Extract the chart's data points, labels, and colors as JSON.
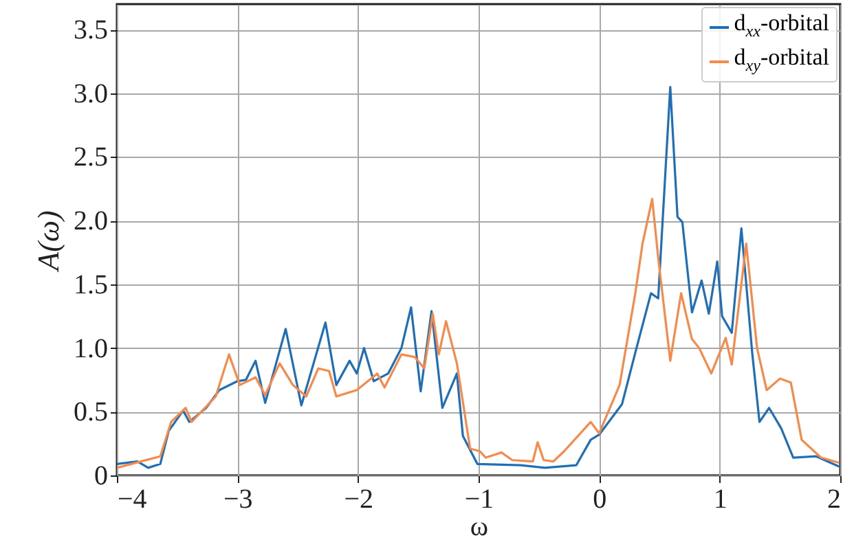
{
  "chart_data": {
    "type": "line",
    "xlabel": "ω",
    "ylabel": "A(ω)",
    "xlim": [
      -4,
      2
    ],
    "ylim": [
      0,
      3.7
    ],
    "xticks": [
      {
        "value": -4,
        "label": "−4"
      },
      {
        "value": -3,
        "label": "−3"
      },
      {
        "value": -2,
        "label": "−2"
      },
      {
        "value": -1,
        "label": "−1"
      },
      0,
      1,
      2
    ],
    "yticks": [
      0,
      0.5,
      {
        "value": 1,
        "label": "1.0"
      },
      1.5,
      {
        "value": 2,
        "label": "2.0"
      },
      2.5,
      {
        "value": 3,
        "label": "3.0"
      },
      3.5
    ],
    "grid": true,
    "legend": "top right",
    "series": [
      {
        "name": "d$_{xx}$-orbital",
        "color": "#1f6fb8",
        "x": [
          -4,
          -3.83,
          -3.74,
          -3.64,
          -3.57,
          -3.45,
          -3.4,
          -3.26,
          -3.15,
          -3.0,
          -2.93,
          -2.85,
          -2.77,
          -2.6,
          -2.47,
          -2.27,
          -2.18,
          -2.07,
          -2.01,
          -1.95,
          -1.87,
          -1.75,
          -1.64,
          -1.56,
          -1.48,
          -1.39,
          -1.3,
          -1.18,
          -1.13,
          -1.01,
          -0.65,
          -0.45,
          -0.19,
          -0.07,
          0.0,
          0.19,
          0.31,
          0.43,
          0.49,
          0.59,
          0.65,
          0.69,
          0.77,
          0.85,
          0.91,
          0.98,
          1.02,
          1.1,
          1.18,
          1.27,
          1.33,
          1.41,
          1.51,
          1.61,
          1.8,
          1.99
        ],
        "values": [
          0.09,
          0.11,
          0.06,
          0.09,
          0.35,
          0.51,
          0.42,
          0.53,
          0.67,
          0.74,
          0.75,
          0.9,
          0.57,
          1.15,
          0.55,
          1.2,
          0.71,
          0.9,
          0.8,
          1.0,
          0.74,
          0.8,
          1.0,
          1.32,
          0.66,
          1.29,
          0.53,
          0.8,
          0.31,
          0.09,
          0.08,
          0.06,
          0.08,
          0.28,
          0.32,
          0.56,
          1.0,
          1.43,
          1.39,
          3.05,
          2.03,
          1.99,
          1.28,
          1.53,
          1.27,
          1.68,
          1.25,
          1.12,
          1.94,
          0.96,
          0.42,
          0.53,
          0.37,
          0.14,
          0.15,
          0.07
        ]
      },
      {
        "name": "d$_{xy}$-orbital",
        "color": "#f58a4b",
        "x": [
          -4,
          -3.8,
          -3.64,
          -3.55,
          -3.43,
          -3.38,
          -3.18,
          -3.07,
          -2.98,
          -2.85,
          -2.77,
          -2.65,
          -2.54,
          -2.43,
          -2.33,
          -2.24,
          -2.18,
          -2.01,
          -1.84,
          -1.78,
          -1.64,
          -1.53,
          -1.45,
          -1.38,
          -1.33,
          -1.27,
          -1.18,
          -1.07,
          -0.99,
          -0.94,
          -0.81,
          -0.72,
          -0.55,
          -0.51,
          -0.46,
          -0.38,
          -0.29,
          -0.07,
          0.0,
          0.17,
          0.3,
          0.36,
          0.44,
          0.49,
          0.59,
          0.68,
          0.77,
          0.83,
          0.93,
          1.05,
          1.1,
          1.22,
          1.31,
          1.39,
          1.5,
          1.59,
          1.68,
          1.84,
          1.99
        ],
        "values": [
          0.06,
          0.11,
          0.15,
          0.42,
          0.53,
          0.42,
          0.62,
          0.95,
          0.71,
          0.77,
          0.63,
          0.88,
          0.71,
          0.62,
          0.84,
          0.82,
          0.62,
          0.67,
          0.8,
          0.69,
          0.95,
          0.93,
          0.84,
          1.27,
          0.95,
          1.21,
          0.88,
          0.21,
          0.19,
          0.14,
          0.18,
          0.12,
          0.11,
          0.26,
          0.12,
          0.11,
          0.19,
          0.42,
          0.33,
          0.71,
          1.43,
          1.82,
          2.17,
          1.71,
          0.9,
          1.43,
          1.07,
          1.0,
          0.8,
          1.08,
          0.87,
          1.82,
          1.0,
          0.67,
          0.76,
          0.73,
          0.28,
          0.14,
          0.1
        ]
      }
    ]
  }
}
